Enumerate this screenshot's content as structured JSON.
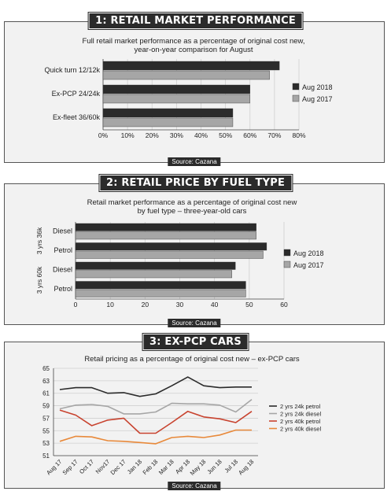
{
  "chart_data": [
    {
      "type": "bar",
      "orientation": "horizontal",
      "heading": "1: RETAIL MARKET PERFORMANCE",
      "subtitle": "Full retail market performance as a percentage of original cost new, year-on-year comparison for August",
      "categories": [
        "Quick turn 12/12k",
        "Ex-PCP 24/24k",
        "Ex-fleet 36/60k"
      ],
      "series": [
        {
          "name": "Aug 2018",
          "values": [
            72,
            60,
            53
          ],
          "color": "#2b2b2b"
        },
        {
          "name": "Aug 2017",
          "values": [
            68,
            60,
            53
          ],
          "color": "#a6a6a6"
        }
      ],
      "xlim": [
        0,
        80
      ],
      "xticks": [
        "0%",
        "10%",
        "20%",
        "30%",
        "40%",
        "50%",
        "60%",
        "70%",
        "80%"
      ],
      "legend_position": "right",
      "grid": "vertical",
      "source": "Source: Cazana"
    },
    {
      "type": "bar",
      "orientation": "horizontal",
      "heading": "2: RETAIL PRICE BY FUEL TYPE",
      "subtitle": "Retail market performance as a percentage of original cost new by fuel type – three-year-old cars",
      "categories": [
        "Diesel",
        "Petrol",
        "Diesel",
        "Petrol"
      ],
      "groups": [
        {
          "label": "3 yrs 36k",
          "categories": [
            0,
            1
          ]
        },
        {
          "label": "3 yrs 60k",
          "categories": [
            2,
            3
          ]
        }
      ],
      "series": [
        {
          "name": "Aug 2018",
          "values": [
            52,
            55,
            46,
            49
          ],
          "color": "#2b2b2b"
        },
        {
          "name": "Aug 2017",
          "values": [
            52,
            54,
            45,
            49
          ],
          "color": "#a6a6a6"
        }
      ],
      "xlim": [
        0,
        60
      ],
      "xticks": [
        "0",
        "10",
        "20",
        "30",
        "40",
        "50",
        "60"
      ],
      "legend_position": "right",
      "grid": "vertical",
      "source": "Source: Cazana"
    },
    {
      "type": "line",
      "heading": "3: EX-PCP CARS",
      "subtitle": "Retail pricing as a percentage of original cost new – ex-PCP cars",
      "x": [
        "Aug 17",
        "Sep 17",
        "Oct 17",
        "Nov17",
        "Dec 17",
        "Jan 18",
        "Feb 18",
        "Mar 18",
        "Apr 18",
        "May 18",
        "Jun 18",
        "Jul 18",
        "Aug 18"
      ],
      "series": [
        {
          "name": "2 yrs 24k petrol",
          "values": [
            61.6,
            61.9,
            61.9,
            61.0,
            61.1,
            60.5,
            60.9,
            62.2,
            63.6,
            62.2,
            61.9,
            62.0,
            62.0
          ],
          "color": "#2b2b2b"
        },
        {
          "name": "2 yrs 24k diesel",
          "values": [
            58.5,
            59.1,
            59.2,
            58.9,
            57.7,
            57.7,
            58.0,
            59.4,
            59.3,
            59.3,
            59.1,
            58.0,
            60.0
          ],
          "color": "#a6a6a6"
        },
        {
          "name": "2 yrs 40k petrol",
          "values": [
            58.3,
            57.5,
            55.8,
            56.7,
            57.0,
            54.6,
            54.6,
            56.3,
            58.1,
            57.2,
            56.9,
            56.3,
            58.1
          ],
          "color": "#c8432f"
        },
        {
          "name": "2 yrs 40k diesel",
          "values": [
            53.3,
            54.1,
            54.0,
            53.4,
            53.3,
            53.1,
            52.9,
            53.9,
            54.1,
            53.9,
            54.3,
            55.1,
            55.1
          ],
          "color": "#e8893a"
        }
      ],
      "ylim": [
        51,
        65
      ],
      "yticks": [
        "65",
        "63",
        "61",
        "59",
        "57",
        "55",
        "53",
        "51"
      ],
      "legend_position": "right",
      "grid": "horizontal",
      "source": "Source: Cazana"
    }
  ]
}
